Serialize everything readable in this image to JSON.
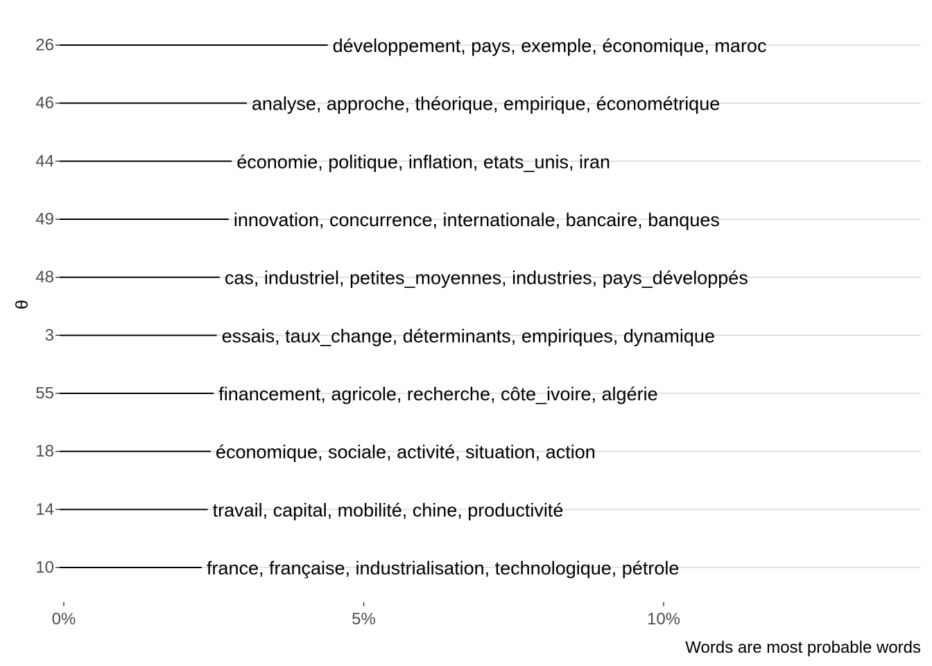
{
  "chart_data": {
    "type": "bar",
    "orientation": "horizontal",
    "ylabel": "θ",
    "xlabel": "",
    "xlim": [
      0,
      14.3
    ],
    "x_ticks": [
      {
        "value": 0,
        "label": "0%"
      },
      {
        "value": 5,
        "label": "5%"
      },
      {
        "value": 10,
        "label": "10%"
      }
    ],
    "grid": "horizontal major lines",
    "caption": "Words are most probable words",
    "colors": {
      "bar": "#000000",
      "grid": "#d9d9d9",
      "tick_text": "#4d4d4d",
      "label_text": "#000000"
    },
    "categories": [
      "26",
      "46",
      "44",
      "49",
      "48",
      "3",
      "55",
      "18",
      "14",
      "10"
    ],
    "values": [
      4.4,
      3.05,
      2.8,
      2.75,
      2.6,
      2.55,
      2.5,
      2.45,
      2.4,
      2.3
    ],
    "labels": [
      "développement, pays, exemple, économique, maroc",
      "analyse, approche, théorique, empirique, économétrique",
      "économie, politique, inflation, etats_unis, iran",
      "innovation, concurrence, internationale, bancaire, banques",
      "cas, industriel, petites_moyennes, industries, pays_développés",
      "essais, taux_change, déterminants, empiriques, dynamique",
      "financement, agricole, recherche, côte_ivoire, algérie",
      "économique, sociale, activité, situation, action",
      "travail, capital, mobilité, chine, productivité",
      "france, française, industrialisation, technologique, pétrole"
    ]
  }
}
